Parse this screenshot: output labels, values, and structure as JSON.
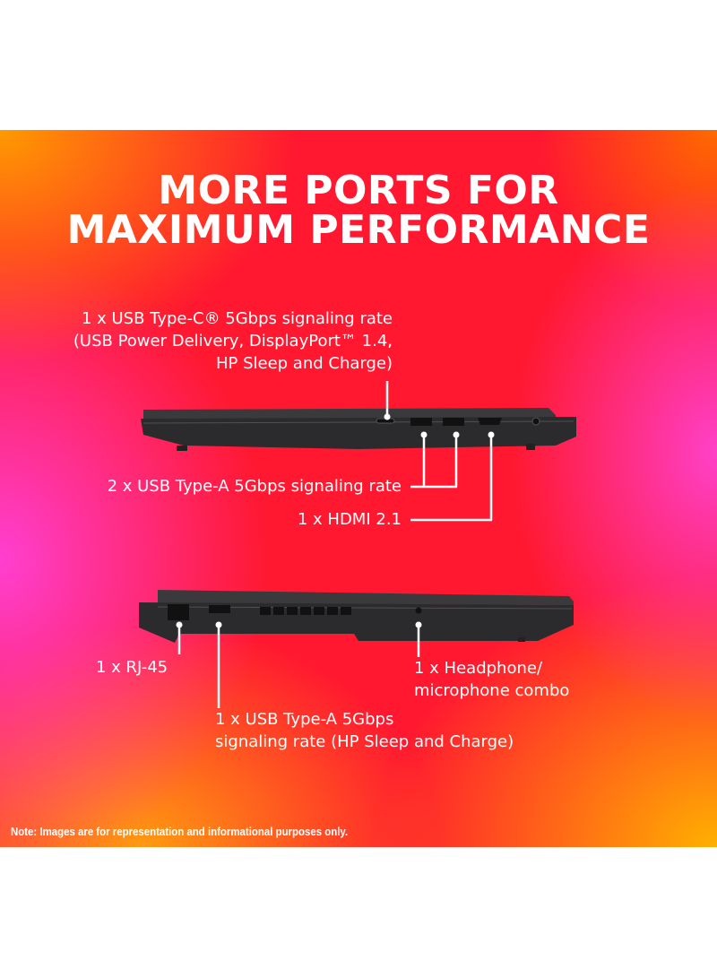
{
  "title": {
    "line1": "MORE PORTS FOR",
    "line2": "MAXIMUM PERFORMANCE"
  },
  "ports": {
    "usb_c": {
      "line1": "1 x USB Type-C® 5Gbps signaling rate",
      "line2": "(USB Power Delivery, DisplayPort™ 1.4,",
      "line3": "HP Sleep and Charge)"
    },
    "usb_a_right": "2 x USB Type-A 5Gbps signaling rate",
    "hdmi": "1 x HDMI 2.1",
    "rj45": "1 x RJ-45",
    "headphone": {
      "line1": "1 x Headphone/",
      "line2": "microphone combo"
    },
    "usb_a_left": {
      "line1": "1 x USB Type-A 5Gbps",
      "line2": "signaling rate (HP Sleep and Charge)"
    }
  },
  "note": "Note: Images are for representation and informational purposes only.",
  "colors": {
    "background_center": "#ff1830",
    "background_orange": "#ff9a00",
    "background_magenta": "#ff3fd0",
    "text": "#ffffff",
    "laptop": "#2a2a2c"
  }
}
